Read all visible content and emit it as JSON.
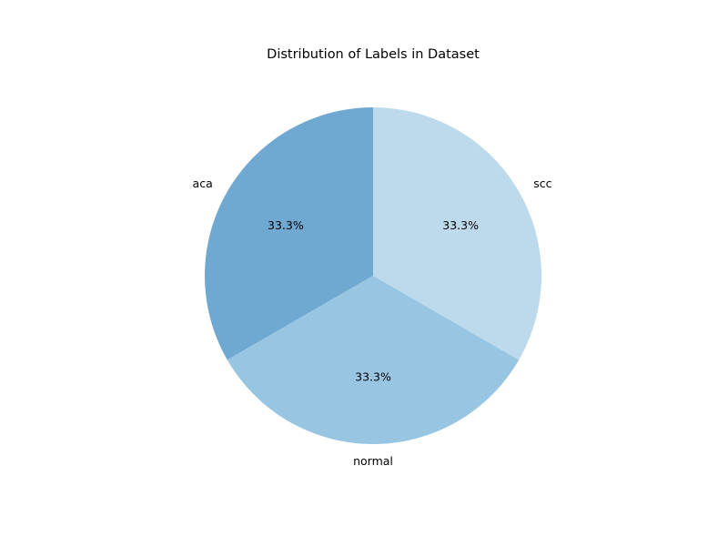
{
  "chart_data": {
    "type": "pie",
    "title": "Distribution of Labels in Dataset",
    "slices": [
      {
        "label": "aca",
        "value": 33.3,
        "pct_label": "33.3%",
        "color": "#6fa8d1"
      },
      {
        "label": "normal",
        "value": 33.3,
        "pct_label": "33.3%",
        "color": "#98c6e2"
      },
      {
        "label": "scc",
        "value": 33.3,
        "pct_label": "33.3%",
        "color": "#bcdaeb"
      }
    ],
    "start_angle_deg": 90,
    "direction": "counterclockwise",
    "legend": "none"
  }
}
